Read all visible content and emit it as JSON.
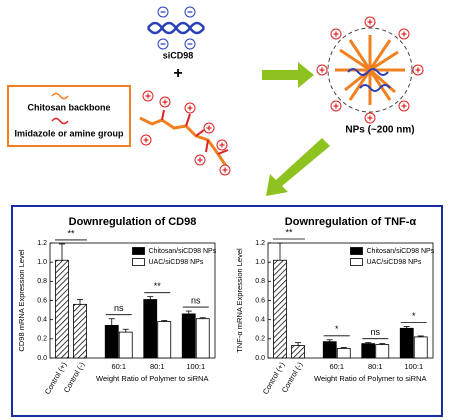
{
  "diagram": {
    "sirna_label": "siCD98",
    "plus": "+",
    "legend": [
      "Chitosan backbone",
      "Imidazole or amine group"
    ],
    "np_label": "NPs (~200 nm)"
  },
  "chart_data": [
    {
      "type": "bar",
      "title": "Downregulation of CD98",
      "y_label": "CD98 mRNA Expression Level",
      "x_label": "Weight Ratio of Polymer to siRNA",
      "ylim": [
        0,
        1.2
      ],
      "yticks": [
        {
          "value": 0,
          "label": "0.0"
        },
        {
          "value": 0.2,
          "label": "0.2"
        },
        {
          "value": 0.4,
          "label": "0.4"
        },
        {
          "value": 0.6,
          "label": "0.6"
        },
        {
          "value": 0.8,
          "label": "0.8"
        },
        {
          "value": 1,
          "label": "1.0"
        },
        {
          "value": 1.2,
          "label": "1.2"
        }
      ],
      "controls": {
        "labels": [
          "Control (+)",
          "Control (-)"
        ],
        "values": [
          1.02,
          0.56
        ],
        "errors": [
          0.17,
          0.05
        ]
      },
      "categories": [
        "60:1",
        "80:1",
        "100:1"
      ],
      "series": [
        {
          "name": "Chitosan/siCD98 NPs",
          "color": "#000000",
          "values": [
            0.34,
            0.61,
            0.46
          ],
          "errors": [
            0.07,
            0.03,
            0.03
          ]
        },
        {
          "name": "UAC/siCD98 NPs",
          "color": "#ffffff",
          "values": [
            0.27,
            0.38,
            0.41
          ],
          "errors": [
            0.03,
            0.01,
            0.01
          ]
        }
      ],
      "significance": [
        "**",
        "ns",
        "**",
        "ns"
      ]
    },
    {
      "type": "bar",
      "title": "Downregulation of TNF-α",
      "y_label": "TNF-α mRNA Expression Level",
      "x_label": "Weight Ratio of Polymer to siRNA",
      "ylim": [
        0,
        1.2
      ],
      "yticks": [
        {
          "value": 0,
          "label": "0.0"
        },
        {
          "value": 0.2,
          "label": "0.2"
        },
        {
          "value": 0.4,
          "label": "0.4"
        },
        {
          "value": 0.6,
          "label": "0.6"
        },
        {
          "value": 0.8,
          "label": "0.8"
        },
        {
          "value": 1,
          "label": "1.0"
        },
        {
          "value": 1.2,
          "label": "1.2"
        }
      ],
      "controls": {
        "labels": [
          "Control (+)",
          "Control (-)"
        ],
        "values": [
          1.02,
          0.13
        ],
        "errors": [
          0.18,
          0.03
        ]
      },
      "categories": [
        "60:1",
        "80:1",
        "100:1"
      ],
      "series": [
        {
          "name": "Chitosan/siCD98 NPs",
          "color": "#000000",
          "values": [
            0.17,
            0.15,
            0.31
          ],
          "errors": [
            0.02,
            0.01,
            0.02
          ]
        },
        {
          "name": "UAC/siCD98 NPs",
          "color": "#ffffff",
          "values": [
            0.1,
            0.14,
            0.22
          ],
          "errors": [
            0.01,
            0.01,
            0.01
          ]
        }
      ],
      "significance": [
        "**",
        "*",
        "ns",
        "*"
      ]
    }
  ]
}
